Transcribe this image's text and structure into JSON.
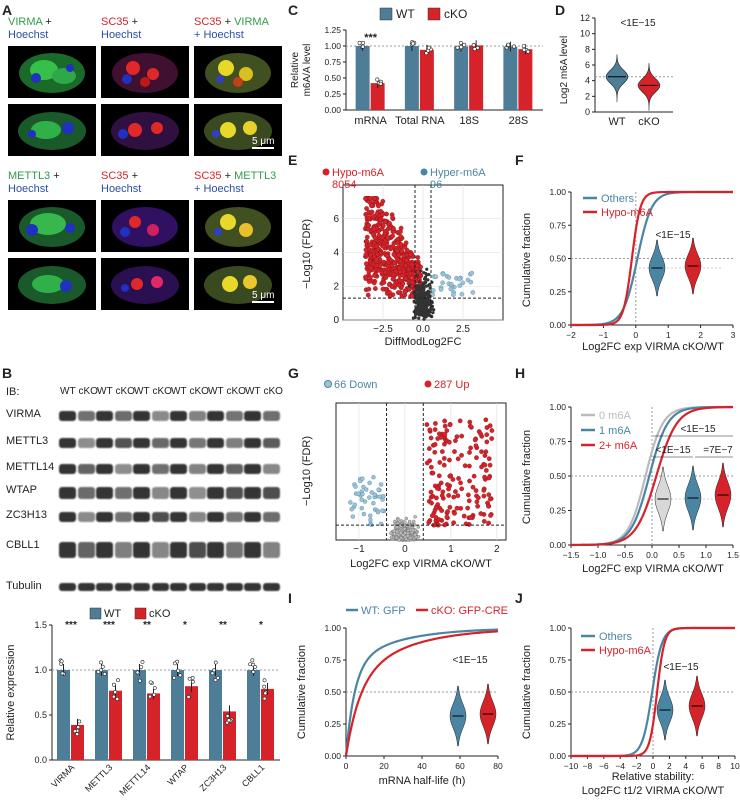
{
  "colors": {
    "wt": "#4e7d97",
    "ko": "#d6232a",
    "gray": "#aaaaaa",
    "teal": "#4a86a4",
    "green": "#2f9c4a",
    "blue": "#2a4fa8"
  },
  "panels": {
    "A": "A",
    "B": "B",
    "C": "C",
    "D": "D",
    "E": "E",
    "F": "F",
    "G": "G",
    "H": "H",
    "I": "I",
    "J": "J"
  },
  "panelA": {
    "row1": [
      {
        "t1": "VIRMA",
        "t2": " +",
        "t3": "Hoechst"
      },
      {
        "t1": "SC35",
        "t2": " +",
        "t3": "Hoechst"
      },
      {
        "t1": "SC35",
        "t2": " + ",
        "t2b": "VIRMA",
        "t3": "+ Hoechst"
      }
    ],
    "row2": [
      {
        "t1": "METTL3",
        "t2": " +",
        "t3": "Hoechst"
      },
      {
        "t1": "SC35",
        "t2": " +",
        "t3": "Hoechst"
      },
      {
        "t1": "SC35",
        "t2": " + ",
        "t2b": "METTL3",
        "t3": "+ Hoechst"
      }
    ],
    "scalebar": "5 μm"
  },
  "panelB": {
    "ib": "IB:",
    "lanes": [
      "WT",
      "cKO",
      "WT",
      "cKO",
      "WT",
      "cKO",
      "WT",
      "cKO",
      "WT",
      "cKO",
      "WT",
      "cKO"
    ],
    "proteins": [
      "VIRMA",
      "METTL3",
      "METTL14",
      "WTAP",
      "ZC3H13",
      "CBLL1",
      "Tubulin"
    ],
    "legend": [
      "WT",
      "cKO"
    ],
    "ylabel": "Relative expression",
    "yticks": [
      "0.0",
      "0.5",
      "1.0",
      "1.5"
    ],
    "sig": [
      "***",
      "***",
      "**",
      "*",
      "**",
      "*"
    ]
  },
  "panelC": {
    "legend": [
      "WT",
      "cKO"
    ],
    "ylabel1": "Relative",
    "ylabel2": "m6A/A level",
    "sig": "***",
    "yticks": [
      "0.00",
      "0.25",
      "0.50",
      "0.75",
      "1.00",
      "1.25"
    ]
  },
  "panelD": {
    "ylabel": "Log2 m6A level",
    "pval": "<1E−15",
    "xlabels": [
      "WT",
      "cKO"
    ],
    "yticks": [
      "0",
      "2",
      "4",
      "6",
      "8",
      "10",
      "12"
    ]
  },
  "panelE": {
    "hypo": "Hypo-m6A",
    "hypo_n": "8054",
    "hyper": "Hyper-m6A",
    "hyper_n": "96",
    "ylabel": "−Log10 (FDR)",
    "xlabel": "DiffModLog2FC",
    "xticks": [
      "−2.5",
      "0.0",
      "2.5"
    ],
    "yticks": [
      "0",
      "2",
      "4",
      "6"
    ]
  },
  "panelF": {
    "legend": [
      "Others",
      "Hypo-m6A"
    ],
    "ylabel": "Cumulative fraction",
    "xlabel": "Log2FC exp VIRMA cKO/WT",
    "pval": "<1E−15",
    "xticks": [
      "−2",
      "−1",
      "0",
      "1",
      "2",
      "3"
    ],
    "yticks": [
      "0.00",
      "0.25",
      "0.50",
      "0.75",
      "1.00"
    ]
  },
  "panelG": {
    "down": "66 Down",
    "up": "287 Up",
    "ylabel": "−Log10 (FDR)",
    "xlabel": "Log2FC exp VIRMA cKO/WT",
    "xticks": [
      "−1",
      "0",
      "1",
      "2"
    ]
  },
  "panelH": {
    "legend": [
      "0 m6A",
      "1 m6A",
      "2+ m6A"
    ],
    "ylabel": "Cumulative fraction",
    "xlabel": "Log2FC exp VIRMA cKO/WT",
    "p_top": "<1E−15",
    "p_left": "<1E−15",
    "p_right": "=7E−7",
    "xticks": [
      "−1.5",
      "−1.0",
      "−0.5",
      "0.0",
      "0.5",
      "1.0",
      "1.5"
    ],
    "yticks": [
      "0.00",
      "0.25",
      "0.50",
      "0.75",
      "1.00"
    ]
  },
  "panelI": {
    "legend": [
      "WT: GFP",
      "cKO: GFP-CRE"
    ],
    "ylabel": "Cumulative fraction",
    "xlabel": "mRNA half-life (h)",
    "pval": "<1E−15",
    "xticks": [
      "0",
      "20",
      "40",
      "60",
      "80"
    ],
    "yticks": [
      "0.00",
      "0.25",
      "0.50",
      "0.75",
      "1.00"
    ]
  },
  "panelJ": {
    "legend": [
      "Others",
      "Hypo-m6A"
    ],
    "ylabel": "Cumulative fraction",
    "xlabel1": "Relative stability:",
    "xlabel2": "Log2FC t1/2 VIRMA cKO/WT",
    "pval": "<1E−15",
    "xticks": [
      "−10",
      "−8",
      "−6",
      "−4",
      "−2",
      "0",
      "2",
      "4",
      "6",
      "8",
      "10"
    ],
    "yticks": [
      "0.00",
      "0.25",
      "0.50",
      "0.75",
      "1.00"
    ]
  },
  "chart_data": [
    {
      "panel": "B",
      "type": "bar",
      "categories": [
        "VIRMA",
        "METTL3",
        "METTL14",
        "WTAP",
        "ZC3H13",
        "CBLL1"
      ],
      "series": [
        {
          "name": "WT",
          "values": [
            1.0,
            1.0,
            1.0,
            1.0,
            1.0,
            1.0
          ]
        },
        {
          "name": "cKO",
          "values": [
            0.39,
            0.77,
            0.74,
            0.82,
            0.54,
            0.79
          ]
        }
      ],
      "ylim": [
        0,
        1.5
      ]
    },
    {
      "panel": "C",
      "type": "bar",
      "categories": [
        "mRNA",
        "Total RNA",
        "18S",
        "28S"
      ],
      "series": [
        {
          "name": "WT",
          "values": [
            1.0,
            1.0,
            0.99,
            0.99
          ]
        },
        {
          "name": "cKO",
          "values": [
            0.42,
            0.94,
            1.01,
            0.95
          ]
        }
      ],
      "ylim": [
        0,
        1.25
      ]
    },
    {
      "panel": "D",
      "type": "violin",
      "categories": [
        "WT",
        "cKO"
      ],
      "medians": [
        4.5,
        3.4
      ],
      "ylim": [
        0,
        12
      ]
    },
    {
      "panel": "E",
      "type": "scatter",
      "xlim": [
        -5,
        5
      ],
      "ylim": [
        0,
        8
      ],
      "fdr_threshold": 1.3
    },
    {
      "panel": "F",
      "type": "line",
      "xlim": [
        -2,
        3
      ],
      "ylim": [
        0,
        1
      ]
    },
    {
      "panel": "G",
      "type": "scatter",
      "xlim": [
        -1.5,
        2.2
      ],
      "fdr_threshold": 1.3
    },
    {
      "panel": "H",
      "type": "line",
      "xlim": [
        -1.5,
        1.5
      ],
      "ylim": [
        0,
        1
      ]
    },
    {
      "panel": "I",
      "type": "line",
      "xlim": [
        0,
        80
      ],
      "ylim": [
        0,
        1
      ]
    },
    {
      "panel": "J",
      "type": "line",
      "xlim": [
        -10,
        10
      ],
      "ylim": [
        0,
        1
      ]
    }
  ]
}
